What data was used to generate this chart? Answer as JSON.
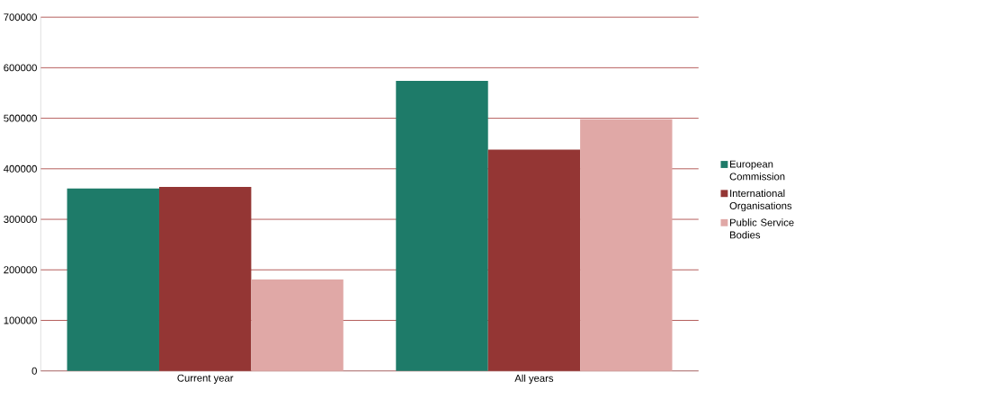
{
  "chart_data": {
    "type": "bar",
    "categories": [
      "Current year",
      "All years"
    ],
    "series": [
      {
        "name": "European Commission",
        "color": "#1e7b69",
        "values": [
          361000,
          574000
        ]
      },
      {
        "name": "International Organisations",
        "color": "#943634",
        "values": [
          364000,
          438000
        ]
      },
      {
        "name": "Public Service Bodies",
        "color": "#e0a8a6",
        "values": [
          181000,
          498000
        ]
      }
    ],
    "ylim": [
      0,
      700000
    ],
    "yticks": [
      0,
      100000,
      200000,
      300000,
      400000,
      500000,
      600000,
      700000
    ],
    "grid": "y",
    "legend": "right"
  }
}
